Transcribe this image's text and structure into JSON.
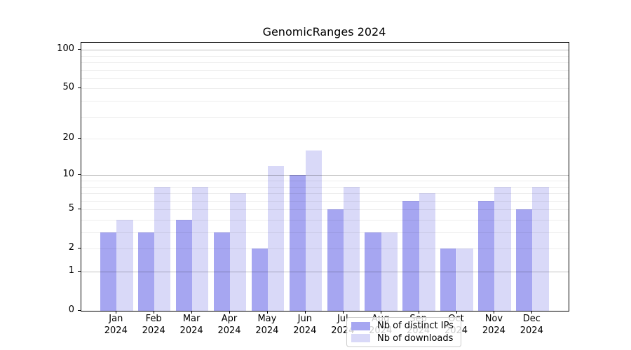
{
  "chart_data": {
    "type": "bar",
    "title": "GenomicRanges 2024",
    "x_tick_months": [
      "Jan",
      "Feb",
      "Mar",
      "Apr",
      "May",
      "Jun",
      "Jul",
      "Aug",
      "Sep",
      "Oct",
      "Nov",
      "Dec"
    ],
    "x_tick_year": "2024",
    "series": [
      {
        "name": "Nb of distinct IPs",
        "color": "#a6a6f1",
        "values": [
          3,
          3,
          4,
          3,
          2,
          10,
          5,
          3,
          6,
          2,
          6,
          5
        ]
      },
      {
        "name": "Nb of downloads",
        "color": "#d9d9f8",
        "values": [
          4,
          8,
          8,
          7,
          12,
          16,
          8,
          3,
          7,
          2,
          8,
          8
        ]
      }
    ],
    "y_scale": "log1p",
    "ylim": [
      0,
      113.6
    ],
    "y_tick_labels": [
      0,
      1,
      2,
      5,
      10,
      20,
      50,
      100
    ],
    "y_gridlines_minor": [
      2,
      3,
      4,
      5,
      6,
      7,
      8,
      9,
      20,
      30,
      40,
      50,
      60,
      70,
      80,
      90
    ],
    "y_gridlines_major": [
      1,
      10,
      100
    ],
    "grid": "on",
    "legend_position": "lower center inside"
  }
}
